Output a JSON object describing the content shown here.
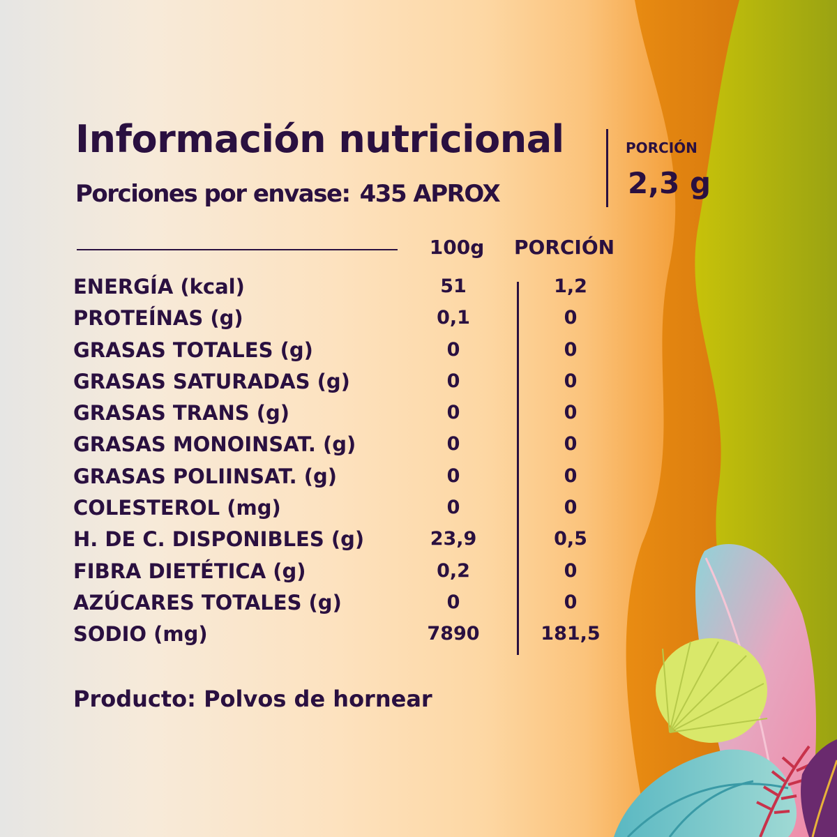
{
  "header": {
    "title": "Información nutricional",
    "servings_label": "Porciones por envase:",
    "servings_value": "435 APROX"
  },
  "portion": {
    "label": "PORCIÓN",
    "value": "2,3 g"
  },
  "table": {
    "columns": [
      "100g",
      "PORCIÓN"
    ],
    "rows": [
      {
        "name": "ENERGÍA (kcal)",
        "per100": "51",
        "portion": "1,2"
      },
      {
        "name": "PROTEÍNAS (g)",
        "per100": "0,1",
        "portion": "0"
      },
      {
        "name": "GRASAS TOTALES (g)",
        "per100": "0",
        "portion": "0"
      },
      {
        "name": "GRASAS SATURADAS (g)",
        "per100": "0",
        "portion": "0"
      },
      {
        "name": "GRASAS TRANS (g)",
        "per100": "0",
        "portion": "0"
      },
      {
        "name": "GRASAS MONOINSAT. (g)",
        "per100": "0",
        "portion": "0"
      },
      {
        "name": "GRASAS POLIINSAT. (g)",
        "per100": "0",
        "portion": "0"
      },
      {
        "name": "COLESTEROL (mg)",
        "per100": "0",
        "portion": "0"
      },
      {
        "name": "H. DE C. DISPONIBLES (g)",
        "per100": "23,9",
        "portion": "0,5"
      },
      {
        "name": "FIBRA DIETÉTICA (g)",
        "per100": "0,2",
        "portion": "0"
      },
      {
        "name": "AZÚCARES TOTALES (g)",
        "per100": "0",
        "portion": "0"
      },
      {
        "name": "SODIO (mg)",
        "per100": "7890",
        "portion": "181,5"
      }
    ]
  },
  "product": "Producto: Polvos de hornear",
  "colors": {
    "text": "#2a1040",
    "orange_band": "#d67a10",
    "green_band": "#b9bd0a",
    "leaf_pink": "#ee9ab5",
    "leaf_teal": "#8fd3d8",
    "leaf_lime": "#d9e86a",
    "leaf_red": "#c8324a",
    "leaf_purple": "#6a2a6e"
  }
}
